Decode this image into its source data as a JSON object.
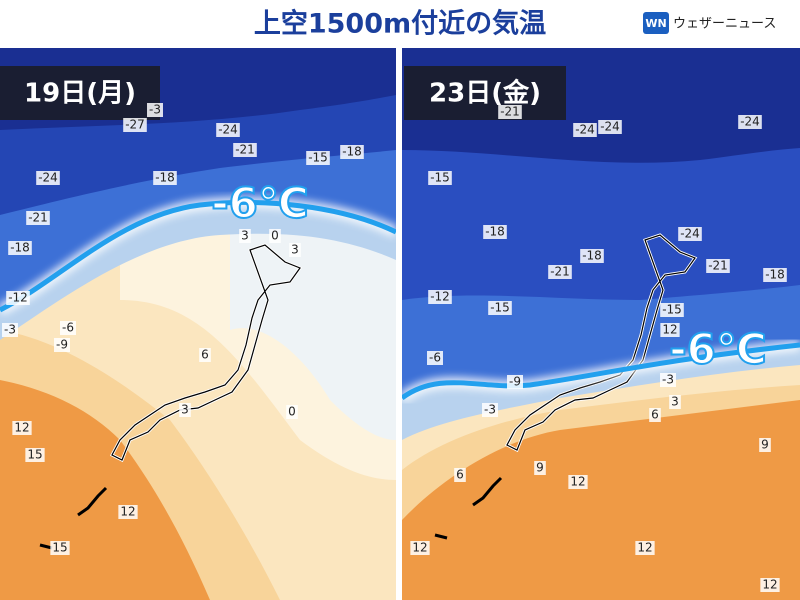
{
  "header": {
    "title": "上空1500m付近の気温",
    "logo_mark": "WN",
    "logo_text": "ウェザーニュース"
  },
  "panels": [
    {
      "date": "19日(月)",
      "isotherm_label": "-6℃",
      "contour_labels": [
        "-3",
        "-27",
        "-24",
        "-21",
        "-15",
        "-18",
        "-24",
        "-18",
        "-21",
        "-18",
        "-12",
        "-3",
        "-6",
        "-9",
        "3",
        "0",
        "3",
        "6",
        "3",
        "0",
        "12",
        "15",
        "12",
        "15"
      ]
    },
    {
      "date": "23日(金)",
      "isotherm_label": "-6℃",
      "contour_labels": [
        "-21",
        "-24",
        "-24",
        "-24",
        "-15",
        "-18",
        "-21",
        "-18",
        "-24",
        "-21",
        "-18",
        "-12",
        "-15",
        "-15",
        "12",
        "-6",
        "-9",
        "-3",
        "-3",
        "3",
        "6",
        "6",
        "9",
        "9",
        "12",
        "12",
        "12",
        "12"
      ]
    }
  ]
}
